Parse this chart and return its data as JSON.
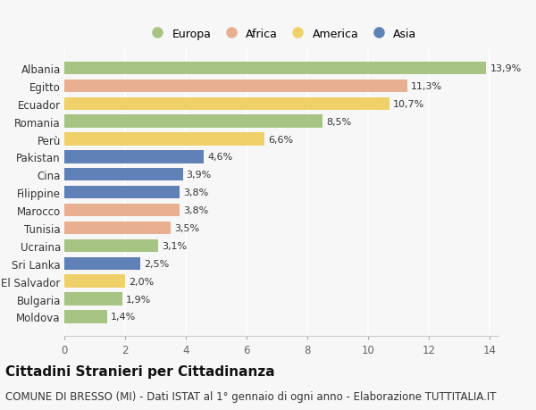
{
  "countries": [
    "Albania",
    "Egitto",
    "Ecuador",
    "Romania",
    "Perù",
    "Pakistan",
    "Cina",
    "Filippine",
    "Marocco",
    "Tunisia",
    "Ucraina",
    "Sri Lanka",
    "El Salvador",
    "Bulgaria",
    "Moldova"
  ],
  "values": [
    13.9,
    11.3,
    10.7,
    8.5,
    6.6,
    4.6,
    3.9,
    3.8,
    3.8,
    3.5,
    3.1,
    2.5,
    2.0,
    1.9,
    1.4
  ],
  "labels": [
    "13,9%",
    "11,3%",
    "10,7%",
    "8,5%",
    "6,6%",
    "4,6%",
    "3,9%",
    "3,8%",
    "3,8%",
    "3,5%",
    "3,1%",
    "2,5%",
    "2,0%",
    "1,9%",
    "1,4%"
  ],
  "continents": [
    "Europa",
    "Africa",
    "America",
    "Europa",
    "America",
    "Asia",
    "Asia",
    "Asia",
    "Africa",
    "Africa",
    "Europa",
    "Asia",
    "America",
    "Europa",
    "Europa"
  ],
  "colors": {
    "Europa": "#a8c484",
    "Africa": "#e8b090",
    "America": "#f0d068",
    "Asia": "#6080b8"
  },
  "legend_order": [
    "Europa",
    "Africa",
    "America",
    "Asia"
  ],
  "xlim": [
    0,
    14
  ],
  "xticks": [
    0,
    2,
    4,
    6,
    8,
    10,
    12,
    14
  ],
  "title": "Cittadini Stranieri per Cittadinanza",
  "subtitle": "COMUNE DI BRESSO (MI) - Dati ISTAT al 1° gennaio di ogni anno - Elaborazione TUTTITALIA.IT",
  "background_color": "#f7f7f7",
  "bar_height": 0.72,
  "title_fontsize": 11,
  "subtitle_fontsize": 8.5,
  "label_fontsize": 8,
  "ytick_fontsize": 8.5,
  "xtick_fontsize": 8.5,
  "legend_fontsize": 9
}
